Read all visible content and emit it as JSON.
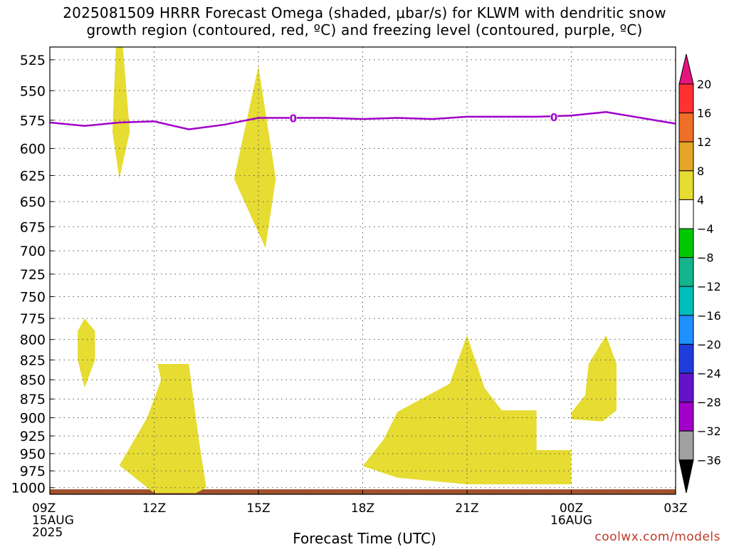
{
  "title_line1": "2025081509 HRRR Forecast Omega (shaded, μbar/s) for KLWM with dendritic snow",
  "title_line2": "growth region (contoured, red, ºC) and freezing level (contoured, purple, ºC)",
  "credit": "coolwx.com/models",
  "chart_data": {
    "type": "area",
    "title": "2025081509 HRRR Forecast Omega (shaded, μbar/s) for KLWM with dendritic snow growth region (contoured, red, ºC) and freezing level (contoured, purple, ºC)",
    "xlabel": "Forecast Time (UTC)",
    "ylabel": "",
    "x_range_hours": [
      0,
      18
    ],
    "x_ticks": [
      {
        "h": 0,
        "lines": [
          "09Z",
          "15AUG",
          "2025"
        ]
      },
      {
        "h": 3,
        "lines": [
          "12Z"
        ]
      },
      {
        "h": 6,
        "lines": [
          "15Z"
        ]
      },
      {
        "h": 9,
        "lines": [
          "18Z"
        ]
      },
      {
        "h": 12,
        "lines": [
          "21Z"
        ]
      },
      {
        "h": 15,
        "lines": [
          "00Z",
          "16AUG"
        ]
      },
      {
        "h": 18,
        "lines": [
          "03Z"
        ]
      }
    ],
    "y_scale": "log",
    "y_range_hPa": [
      515,
      1010
    ],
    "y_ticks": [
      525,
      550,
      575,
      600,
      625,
      650,
      675,
      700,
      725,
      750,
      775,
      800,
      825,
      850,
      875,
      900,
      925,
      950,
      975,
      1000
    ],
    "grid": true,
    "freezing_level": {
      "label": "0",
      "color": "#a000c8",
      "points": [
        [
          0,
          577
        ],
        [
          1,
          580
        ],
        [
          2,
          577
        ],
        [
          3,
          576
        ],
        [
          4,
          583
        ],
        [
          5,
          579
        ],
        [
          6,
          573
        ],
        [
          7,
          573
        ],
        [
          8,
          573
        ],
        [
          9,
          574
        ],
        [
          10,
          573
        ],
        [
          11,
          574
        ],
        [
          12,
          572
        ],
        [
          13,
          572
        ],
        [
          14,
          572
        ],
        [
          15,
          571
        ],
        [
          16,
          568
        ],
        [
          17,
          573
        ],
        [
          18,
          578
        ]
      ],
      "label_points": [
        [
          7,
          573
        ],
        [
          14.5,
          572
        ]
      ]
    },
    "omega_regions": [
      {
        "level": "4 to 8",
        "color": "#e6dc32",
        "points": [
          [
            1.9,
            515
          ],
          [
            2.1,
            515
          ],
          [
            2.3,
            585
          ],
          [
            2.0,
            628
          ],
          [
            1.8,
            585
          ]
        ]
      },
      {
        "level": "4 to 8",
        "color": "#e6dc32",
        "points": [
          [
            6.0,
            530
          ],
          [
            6.5,
            628
          ],
          [
            6.2,
            697
          ],
          [
            5.3,
            628
          ]
        ]
      },
      {
        "level": "4 to 8",
        "color": "#e6dc32",
        "points": [
          [
            1.0,
            775
          ],
          [
            1.3,
            790
          ],
          [
            1.3,
            825
          ],
          [
            1.0,
            860
          ],
          [
            0.8,
            825
          ],
          [
            0.8,
            790
          ]
        ]
      },
      {
        "level": "4 to 8",
        "color": "#e6dc32",
        "points": [
          [
            3.1,
            830
          ],
          [
            4.0,
            830
          ],
          [
            4.1,
            865
          ],
          [
            4.3,
            935
          ],
          [
            4.5,
            1000
          ],
          [
            4.2,
            1008
          ],
          [
            3.0,
            1008
          ],
          [
            2.0,
            967
          ],
          [
            2.8,
            900
          ],
          [
            3.2,
            850
          ]
        ]
      },
      {
        "level": "4 to 8",
        "color": "#e6dc32",
        "points": [
          [
            12.0,
            795
          ],
          [
            12.5,
            860
          ],
          [
            13.0,
            890
          ],
          [
            14.0,
            890
          ],
          [
            14.0,
            945
          ],
          [
            15.0,
            945
          ],
          [
            15.0,
            995
          ],
          [
            12.0,
            995
          ],
          [
            10.0,
            985
          ],
          [
            9.0,
            968
          ],
          [
            9.6,
            930
          ],
          [
            10.0,
            892
          ],
          [
            11.5,
            855
          ]
        ]
      },
      {
        "level": "4 to 8",
        "color": "#e6dc32",
        "points": [
          [
            16.0,
            795
          ],
          [
            16.3,
            830
          ],
          [
            16.3,
            890
          ],
          [
            15.9,
            905
          ],
          [
            15.0,
            902
          ],
          [
            15.0,
            893
          ],
          [
            15.4,
            870
          ],
          [
            15.5,
            830
          ]
        ]
      }
    ],
    "surface_layer": {
      "color": "#a0522d"
    },
    "colorbar": {
      "labels": [
        "20",
        "16",
        "12",
        "8",
        "4",
        "−4",
        "−8",
        "−12",
        "−16",
        "−20",
        "−24",
        "−28",
        "−32",
        "−36"
      ],
      "top_arrow_color": "#e6147e",
      "bottom_arrow_color": "#000000",
      "colors": [
        "#ff3232",
        "#f06e28",
        "#e6a528",
        "#e6dc32",
        "#ffffff",
        "#00c800",
        "#14b48c",
        "#00bebe",
        "#1e90ff",
        "#1e3cdc",
        "#6414c8",
        "#a000c8",
        "#a0a0a0"
      ]
    }
  }
}
